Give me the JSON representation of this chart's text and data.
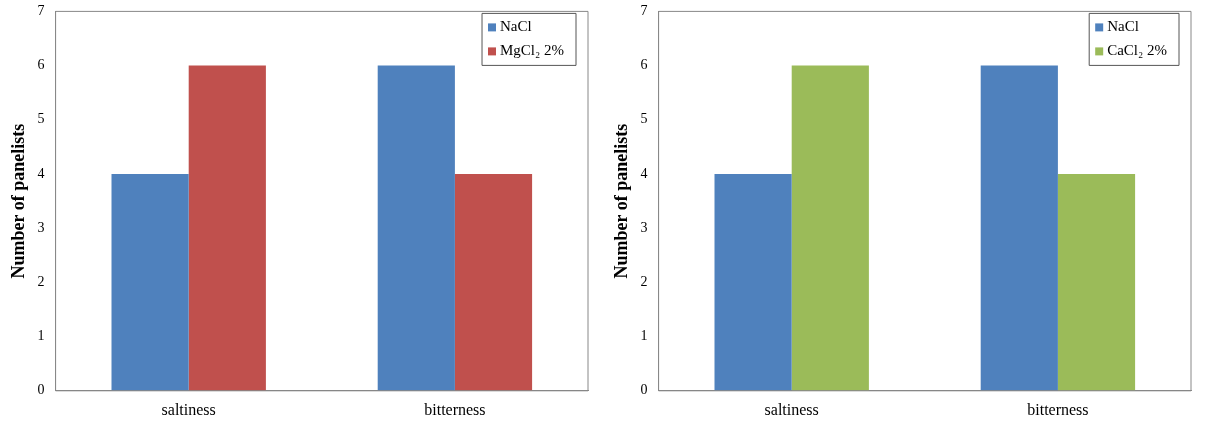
{
  "chart_data": [
    {
      "type": "bar",
      "ylabel": "Number of panelists",
      "categories": [
        "saltiness",
        "bitterness"
      ],
      "series": [
        {
          "name": "NaCl",
          "color": "#4f81bd",
          "values": [
            4,
            6
          ]
        },
        {
          "name": "MgCl₂ 2%",
          "color": "#c0504d",
          "values": [
            6,
            4
          ]
        }
      ],
      "ylim": [
        0,
        7
      ],
      "yticks": [
        0,
        1,
        2,
        3,
        4,
        5,
        6,
        7
      ],
      "grid": false,
      "legend": "top right"
    },
    {
      "type": "bar",
      "ylabel": "Number of panelists",
      "categories": [
        "saltiness",
        "bitterness"
      ],
      "series": [
        {
          "name": "NaCl",
          "color": "#4f81bd",
          "values": [
            4,
            6
          ]
        },
        {
          "name": "CaCl₂ 2%",
          "color": "#9bbb59",
          "values": [
            6,
            4
          ]
        }
      ],
      "ylim": [
        0,
        7
      ],
      "yticks": [
        0,
        1,
        2,
        3,
        4,
        5,
        6,
        7
      ],
      "grid": false,
      "legend": "top right"
    }
  ]
}
